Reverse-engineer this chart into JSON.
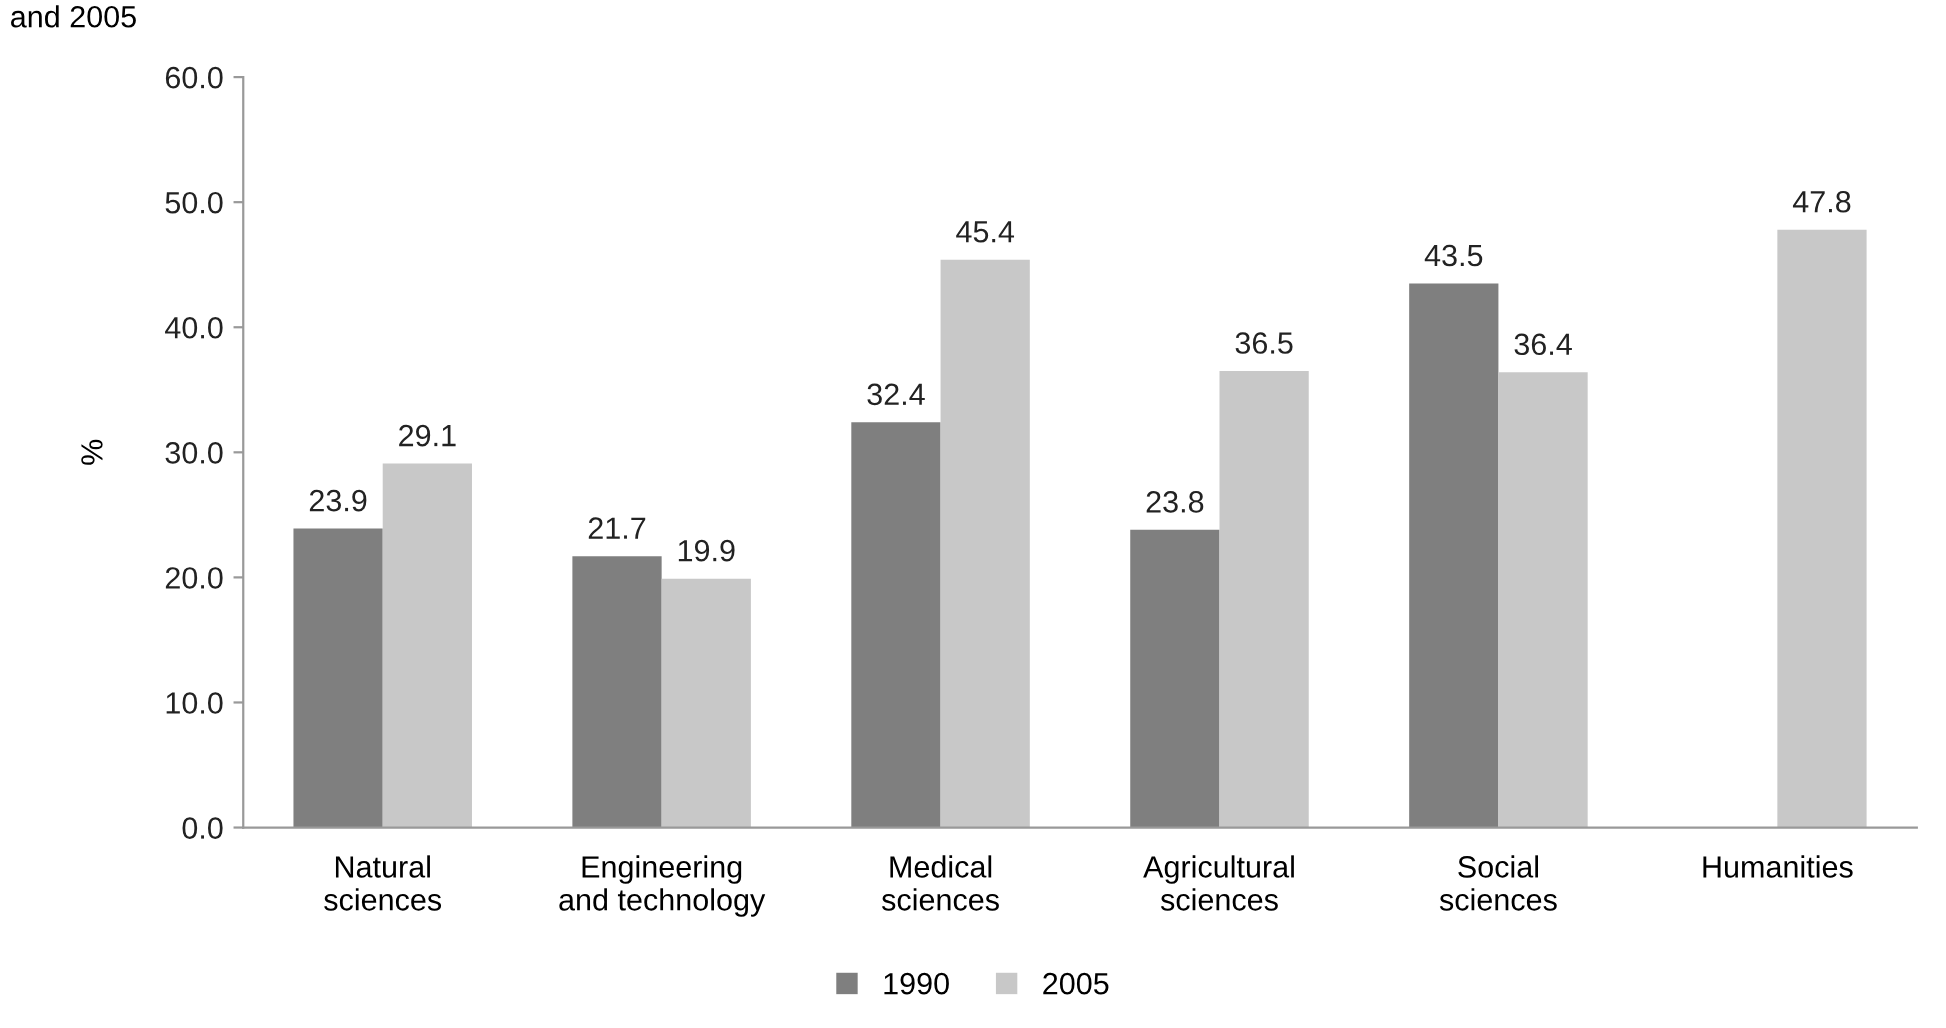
{
  "chart_data": {
    "type": "bar",
    "title": "and 2005",
    "ylabel": "%",
    "categories": [
      "Natural\nsciences",
      "Engineering\nand technology",
      "Medical\nsciences",
      "Agricultural\nsciences",
      "Social\nsciences",
      "Humanities"
    ],
    "series": [
      {
        "name": "1990",
        "color": "#7f7f7f",
        "values": [
          23.9,
          21.7,
          32.4,
          23.8,
          43.5,
          null
        ]
      },
      {
        "name": "2005",
        "color": "#c8c8c8",
        "values": [
          29.1,
          19.9,
          45.4,
          36.5,
          36.4,
          47.8
        ]
      }
    ],
    "ylim": [
      0,
      60
    ],
    "yticks": [
      {
        "value": 0,
        "label": "0.0"
      },
      {
        "value": 10,
        "label": "10.0"
      },
      {
        "value": 20,
        "label": "20.0"
      },
      {
        "value": 30,
        "label": "30.0"
      },
      {
        "value": 40,
        "label": "40.0"
      },
      {
        "value": 50,
        "label": "50.0"
      },
      {
        "value": 60,
        "label": "60.0"
      }
    ],
    "grid": false,
    "legend": "bottom",
    "data_labels": true
  }
}
